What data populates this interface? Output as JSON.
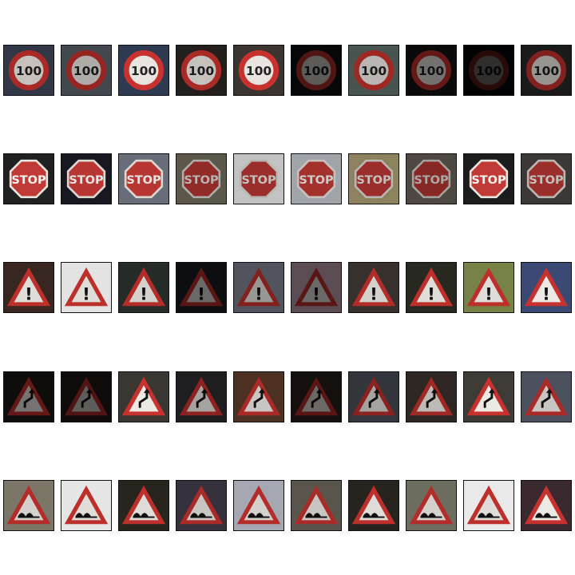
{
  "rows": [
    {
      "class": "speed-limit-100",
      "text": "100",
      "tiles": [
        {
          "bg": "#3a4150",
          "dark": 0.15
        },
        {
          "bg": "#5a5f69",
          "dark": 0.25
        },
        {
          "bg": "#2e3a52",
          "dark": 0.0
        },
        {
          "bg": "#2a2522",
          "dark": 0.15
        },
        {
          "bg": "#3b3532",
          "dark": 0.0
        },
        {
          "bg": "#0f1218",
          "dark": 0.6
        },
        {
          "bg": "#5b6a63",
          "dark": 0.2
        },
        {
          "bg": "#141414",
          "dark": 0.5
        },
        {
          "bg": "#0e0f14",
          "dark": 0.8
        },
        {
          "bg": "#2a2828",
          "dark": 0.35
        }
      ]
    },
    {
      "class": "stop",
      "text": "STOP",
      "tiles": [
        {
          "bg": "#202020",
          "dark": 0.0
        },
        {
          "bg": "#1a1a22",
          "dark": 0.05
        },
        {
          "bg": "#6e7480",
          "dark": 0.05
        },
        {
          "bg": "#7a7465",
          "dark": 0.25
        },
        {
          "bg": "#f3f3f3",
          "dark": 0.2
        },
        {
          "bg": "#bcc2c8",
          "dark": 0.15
        },
        {
          "bg": "#b0a476",
          "dark": 0.2
        },
        {
          "bg": "#6f675d",
          "dark": 0.3
        },
        {
          "bg": "#1c1c1c",
          "dark": 0.0
        },
        {
          "bg": "#4a4644",
          "dark": 0.2
        }
      ]
    },
    {
      "class": "general-caution",
      "text": "!",
      "tiles": [
        {
          "bg": "#3a2a22",
          "dark": 0.05
        },
        {
          "bg": "#f0f0f0",
          "dark": 0.05
        },
        {
          "bg": "#2a302c",
          "dark": 0.1
        },
        {
          "bg": "#1c2026",
          "dark": 0.55
        },
        {
          "bg": "#7e8290",
          "dark": 0.35
        },
        {
          "bg": "#c9aab8",
          "dark": 0.55
        },
        {
          "bg": "#3e3632",
          "dark": 0.1
        },
        {
          "bg": "#2a2c22",
          "dark": 0.05
        },
        {
          "bg": "#7d8a4a",
          "dark": 0.05
        },
        {
          "bg": "#3a4a74",
          "dark": 0.0
        }
      ]
    },
    {
      "class": "double-curve",
      "text": "",
      "tiles": [
        {
          "bg": "#1e1a18",
          "dark": 0.5
        },
        {
          "bg": "#231c1a",
          "dark": 0.6
        },
        {
          "bg": "#3a3632",
          "dark": 0.0
        },
        {
          "bg": "#2c2a2e",
          "dark": 0.3
        },
        {
          "bg": "#5a3a2a",
          "dark": 0.15
        },
        {
          "bg": "#2a2420",
          "dark": 0.55
        },
        {
          "bg": "#4a4e58",
          "dark": 0.3
        },
        {
          "bg": "#3a302c",
          "dark": 0.2
        },
        {
          "bg": "#3e3a36",
          "dark": 0.0
        },
        {
          "bg": "#5a6070",
          "dark": 0.15
        }
      ]
    },
    {
      "class": "bumpy-road",
      "text": "",
      "tiles": [
        {
          "bg": "#8a8474",
          "dark": 0.1
        },
        {
          "bg": "#f2f2f2",
          "dark": 0.05
        },
        {
          "bg": "#2a2820",
          "dark": 0.05
        },
        {
          "bg": "#403a48",
          "dark": 0.15
        },
        {
          "bg": "#b8bcc8",
          "dark": 0.1
        },
        {
          "bg": "#6a645a",
          "dark": 0.15
        },
        {
          "bg": "#2a2622",
          "dark": 0.05
        },
        {
          "bg": "#7a7a6a",
          "dark": 0.1
        },
        {
          "bg": "#f6f6f6",
          "dark": 0.05
        },
        {
          "bg": "#3a2a30",
          "dark": 0.0
        }
      ]
    }
  ]
}
